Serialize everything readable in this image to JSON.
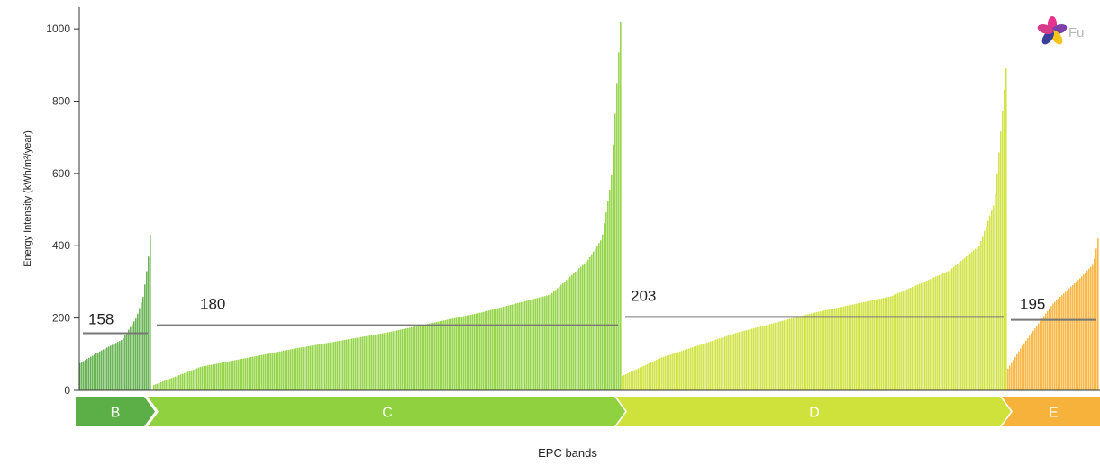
{
  "chart_data": {
    "type": "bar",
    "title": "",
    "xlabel": "EPC bands",
    "ylabel": "Energy Intensity (kWh/m²/year)",
    "ylim": [
      0,
      1060
    ],
    "yticks": [
      0,
      200,
      400,
      600,
      800,
      1000
    ],
    "grid": false,
    "description_of_series": "Buildings sorted ascending by energy intensity within each EPC band",
    "bands": [
      {
        "label": "B",
        "mean": 158,
        "mean_label": "158",
        "color": "#5caf47",
        "profile": [
          [
            0,
            75
          ],
          [
            0.3,
            110
          ],
          [
            0.6,
            140
          ],
          [
            0.8,
            200
          ],
          [
            0.9,
            260
          ],
          [
            0.97,
            360
          ],
          [
            1,
            430
          ]
        ]
      },
      {
        "label": "C",
        "mean": 180,
        "mean_label": "180",
        "color": "#8fd13f",
        "profile": [
          [
            0,
            15
          ],
          [
            0.1,
            65
          ],
          [
            0.3,
            115
          ],
          [
            0.5,
            160
          ],
          [
            0.7,
            215
          ],
          [
            0.85,
            265
          ],
          [
            0.93,
            360
          ],
          [
            0.96,
            420
          ],
          [
            0.98,
            580
          ],
          [
            1,
            1020
          ]
        ]
      },
      {
        "label": "D",
        "mean": 203,
        "mean_label": "203",
        "color": "#cfe23c",
        "profile": [
          [
            0,
            40
          ],
          [
            0.1,
            90
          ],
          [
            0.3,
            160
          ],
          [
            0.5,
            215
          ],
          [
            0.7,
            260
          ],
          [
            0.85,
            330
          ],
          [
            0.93,
            400
          ],
          [
            0.97,
            520
          ],
          [
            1,
            890
          ]
        ]
      },
      {
        "label": "E",
        "mean": 195,
        "mean_label": "195",
        "color": "#f7b23b",
        "profile": [
          [
            0,
            60
          ],
          [
            0.15,
            120
          ],
          [
            0.5,
            240
          ],
          [
            0.8,
            310
          ],
          [
            0.95,
            350
          ],
          [
            1,
            420
          ]
        ]
      }
    ]
  },
  "logo": {
    "text": "Fu"
  }
}
